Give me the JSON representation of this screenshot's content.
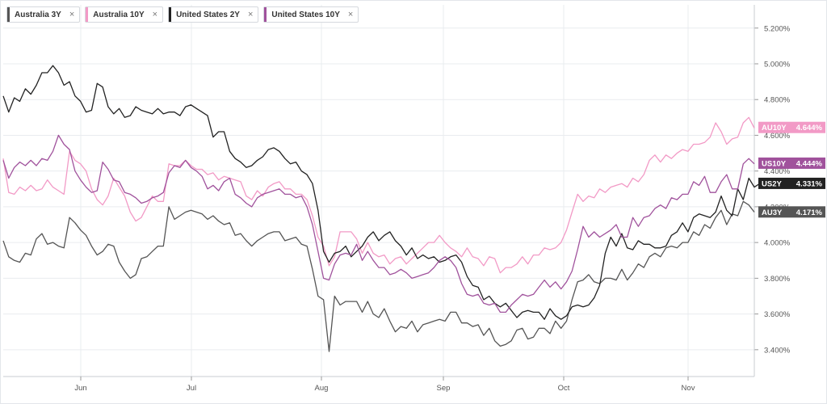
{
  "legend": [
    {
      "label": "Australia 3Y",
      "color": "#555555"
    },
    {
      "label": "Australia 10Y",
      "color": "#f29ac6"
    },
    {
      "label": "United States 2Y",
      "color": "#222222"
    },
    {
      "label": "United States 10Y",
      "color": "#a0529c"
    }
  ],
  "close_glyph": "×",
  "chart_data": {
    "type": "line",
    "x_axis_ticks": [
      "Jun",
      "Jul",
      "Aug",
      "Sep",
      "Oct",
      "Nov"
    ],
    "y_axis_ticks": [
      "3.400%",
      "3.600%",
      "3.800%",
      "4.000%",
      "4.200%",
      "4.400%",
      "4.600%",
      "4.800%",
      "5.000%",
      "5.200%"
    ],
    "ylim": [
      3.25,
      5.33
    ],
    "grid": true,
    "legend_placement": "top-left",
    "series": [
      {
        "name": "Australia 3Y",
        "code": "AU3Y",
        "last": "4.171%",
        "color": "#555555",
        "values": [
          4.01,
          3.92,
          3.9,
          3.89,
          3.94,
          3.93,
          4.02,
          4.05,
          3.99,
          4.0,
          3.98,
          3.97,
          4.14,
          4.11,
          4.07,
          4.04,
          3.98,
          3.93,
          3.95,
          3.99,
          3.98,
          3.89,
          3.84,
          3.8,
          3.82,
          3.91,
          3.92,
          3.95,
          3.98,
          3.98,
          4.2,
          4.13,
          4.15,
          4.17,
          4.18,
          4.17,
          4.16,
          4.13,
          4.15,
          4.12,
          4.1,
          4.11,
          4.04,
          4.05,
          4.01,
          3.98,
          4.01,
          4.03,
          4.05,
          4.06,
          4.06,
          4.01,
          4.02,
          4.03,
          3.99,
          3.98,
          3.85,
          3.7,
          3.68,
          3.39,
          3.7,
          3.65,
          3.67,
          3.67,
          3.67,
          3.61,
          3.67,
          3.6,
          3.58,
          3.63,
          3.56,
          3.5,
          3.53,
          3.52,
          3.56,
          3.5,
          3.54,
          3.55,
          3.56,
          3.57,
          3.56,
          3.61,
          3.61,
          3.55,
          3.55,
          3.53,
          3.54,
          3.48,
          3.52,
          3.45,
          3.42,
          3.43,
          3.45,
          3.51,
          3.52,
          3.46,
          3.47,
          3.52,
          3.52,
          3.49,
          3.56,
          3.52,
          3.56,
          3.68,
          3.78,
          3.79,
          3.82,
          3.78,
          3.77,
          3.8,
          3.8,
          3.79,
          3.85,
          3.79,
          3.83,
          3.88,
          3.86,
          3.92,
          3.94,
          3.92,
          3.97,
          3.98,
          3.97,
          4.0,
          4.0,
          4.06,
          4.04,
          4.1,
          4.08,
          4.14,
          4.18,
          4.1,
          4.16,
          4.15,
          4.23,
          4.21,
          4.17
        ]
      },
      {
        "name": "Australia 10Y",
        "code": "AU10Y",
        "last": "4.644%",
        "color": "#f29ac6",
        "values": [
          4.47,
          4.28,
          4.27,
          4.31,
          4.29,
          4.32,
          4.29,
          4.3,
          4.35,
          4.31,
          4.29,
          4.27,
          4.51,
          4.46,
          4.44,
          4.4,
          4.3,
          4.24,
          4.21,
          4.26,
          4.36,
          4.31,
          4.26,
          4.17,
          4.12,
          4.14,
          4.2,
          4.26,
          4.23,
          4.23,
          4.44,
          4.43,
          4.43,
          4.46,
          4.43,
          4.41,
          4.41,
          4.38,
          4.39,
          4.35,
          4.37,
          4.36,
          4.35,
          4.34,
          4.26,
          4.24,
          4.29,
          4.26,
          4.31,
          4.33,
          4.34,
          4.3,
          4.3,
          4.27,
          4.27,
          4.24,
          4.15,
          4.03,
          3.98,
          3.87,
          3.92,
          4.06,
          4.06,
          4.06,
          4.02,
          3.94,
          4.0,
          3.94,
          3.92,
          3.93,
          3.88,
          3.91,
          3.92,
          3.88,
          3.91,
          3.94,
          3.97,
          4.0,
          4.0,
          4.04,
          4.0,
          3.97,
          3.95,
          3.92,
          3.97,
          3.92,
          3.91,
          3.87,
          3.92,
          3.91,
          3.83,
          3.86,
          3.86,
          3.88,
          3.92,
          3.88,
          3.93,
          3.93,
          3.97,
          3.96,
          3.97,
          4.0,
          4.07,
          4.17,
          4.27,
          4.23,
          4.26,
          4.25,
          4.3,
          4.28,
          4.31,
          4.32,
          4.33,
          4.31,
          4.36,
          4.34,
          4.38,
          4.46,
          4.49,
          4.45,
          4.49,
          4.47,
          4.5,
          4.52,
          4.51,
          4.55,
          4.55,
          4.56,
          4.59,
          4.67,
          4.62,
          4.55,
          4.58,
          4.59,
          4.67,
          4.7,
          4.64
        ]
      },
      {
        "name": "United States 2Y",
        "code": "US2Y",
        "last": "4.331%",
        "color": "#222222",
        "values": [
          4.82,
          4.73,
          4.81,
          4.79,
          4.86,
          4.83,
          4.88,
          4.95,
          4.95,
          4.99,
          4.95,
          4.88,
          4.9,
          4.82,
          4.79,
          4.73,
          4.74,
          4.89,
          4.87,
          4.76,
          4.72,
          4.75,
          4.7,
          4.71,
          4.76,
          4.74,
          4.73,
          4.72,
          4.75,
          4.72,
          4.73,
          4.73,
          4.71,
          4.76,
          4.77,
          4.75,
          4.73,
          4.71,
          4.59,
          4.62,
          4.62,
          4.51,
          4.47,
          4.45,
          4.42,
          4.43,
          4.46,
          4.48,
          4.52,
          4.53,
          4.51,
          4.47,
          4.44,
          4.45,
          4.4,
          4.38,
          4.33,
          4.18,
          3.95,
          3.89,
          3.94,
          3.95,
          3.98,
          3.92,
          3.95,
          3.98,
          4.03,
          4.06,
          4.01,
          4.04,
          4.06,
          4.01,
          3.98,
          3.93,
          3.97,
          3.91,
          3.93,
          3.91,
          3.92,
          3.89,
          3.9,
          3.92,
          3.93,
          3.89,
          3.81,
          3.76,
          3.75,
          3.68,
          3.7,
          3.66,
          3.64,
          3.66,
          3.62,
          3.58,
          3.61,
          3.62,
          3.61,
          3.61,
          3.57,
          3.63,
          3.59,
          3.57,
          3.59,
          3.64,
          3.65,
          3.64,
          3.65,
          3.69,
          3.76,
          3.94,
          4.03,
          3.98,
          4.05,
          3.97,
          3.96,
          4.01,
          3.99,
          3.99,
          3.97,
          3.97,
          3.98,
          4.04,
          4.06,
          4.11,
          4.06,
          4.14,
          4.16,
          4.15,
          4.14,
          4.17,
          4.26,
          4.18,
          4.15,
          4.3,
          4.24,
          4.36,
          4.31,
          4.33
        ]
      },
      {
        "name": "United States 10Y",
        "code": "US10Y",
        "last": "4.444%",
        "color": "#a0529c",
        "values": [
          4.46,
          4.36,
          4.42,
          4.45,
          4.43,
          4.46,
          4.43,
          4.47,
          4.46,
          4.51,
          4.6,
          4.55,
          4.52,
          4.4,
          4.35,
          4.31,
          4.28,
          4.29,
          4.45,
          4.41,
          4.35,
          4.34,
          4.28,
          4.27,
          4.25,
          4.22,
          4.23,
          4.25,
          4.26,
          4.28,
          4.39,
          4.43,
          4.42,
          4.46,
          4.42,
          4.4,
          4.37,
          4.3,
          4.32,
          4.29,
          4.34,
          4.36,
          4.27,
          4.25,
          4.22,
          4.2,
          4.25,
          4.27,
          4.28,
          4.29,
          4.3,
          4.27,
          4.27,
          4.25,
          4.26,
          4.2,
          4.1,
          3.95,
          3.8,
          3.79,
          3.88,
          3.93,
          3.94,
          3.93,
          3.99,
          3.9,
          3.95,
          3.9,
          3.86,
          3.86,
          3.82,
          3.83,
          3.85,
          3.83,
          3.8,
          3.81,
          3.82,
          3.83,
          3.86,
          3.9,
          3.92,
          3.9,
          3.86,
          3.77,
          3.71,
          3.7,
          3.71,
          3.66,
          3.65,
          3.66,
          3.61,
          3.61,
          3.65,
          3.68,
          3.71,
          3.7,
          3.71,
          3.75,
          3.79,
          3.75,
          3.78,
          3.74,
          3.78,
          3.84,
          3.96,
          4.09,
          4.03,
          4.06,
          4.03,
          4.05,
          4.07,
          4.1,
          4.03,
          4.03,
          4.14,
          4.09,
          4.14,
          4.15,
          4.19,
          4.21,
          4.19,
          4.25,
          4.24,
          4.27,
          4.27,
          4.34,
          4.32,
          4.37,
          4.28,
          4.28,
          4.34,
          4.38,
          4.3,
          4.3,
          4.44,
          4.47,
          4.44
        ]
      }
    ]
  }
}
